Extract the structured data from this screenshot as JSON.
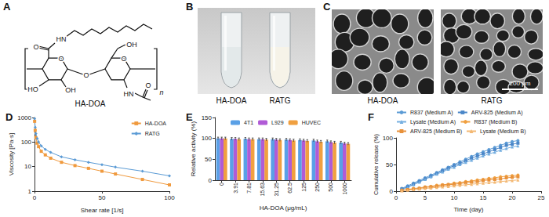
{
  "figure": {
    "A": {
      "label": "A",
      "atoms": [
        "O",
        "HN",
        "O",
        "HO",
        "OH",
        "O",
        "O",
        "OH",
        "HN",
        "O",
        "n"
      ],
      "caption": "HA-DOA"
    },
    "B": {
      "label": "B",
      "tubes": [
        "HA-DOA",
        "RATG"
      ]
    },
    "C": {
      "label": "C",
      "images": [
        "HA-DOA",
        "RATG"
      ],
      "scale_bar": "200 μm"
    }
  },
  "chart_data": [
    {
      "type": "line",
      "title": "D",
      "x_label": "Shear rate [1/s]",
      "y_label": "Viscosity [Pa·s]",
      "x": [
        0.1,
        0.5,
        1,
        2,
        3,
        5,
        8,
        12,
        20,
        30,
        40,
        50,
        60,
        80,
        100
      ],
      "series": [
        {
          "name": "HA-DOA",
          "color": "#f09a3e",
          "marker": "square",
          "values": [
            700,
            300,
            150,
            90,
            65,
            42,
            30,
            22,
            15,
            11,
            8.5,
            6.5,
            5,
            3,
            1.8
          ]
        },
        {
          "name": "RATG",
          "color": "#5b9bd5",
          "marker": "diamond",
          "values": [
            900,
            400,
            220,
            140,
            100,
            70,
            50,
            38,
            25,
            19,
            15,
            12,
            9.5,
            6.5,
            4.2
          ]
        }
      ],
      "xlim": [
        0,
        100
      ],
      "xticks": [
        0,
        50,
        100
      ],
      "ylim": [
        1,
        1000
      ],
      "yticks": [
        1,
        10,
        100,
        1000
      ],
      "log": "y",
      "grid": false,
      "legend": "upper right"
    },
    {
      "type": "bar",
      "title": "E",
      "x_label": "HA-DOA (μg/mL)",
      "y_label": "Relative activity (%)",
      "categories": [
        "0",
        "3.91",
        "7.81",
        "15.63",
        "31.25",
        "62.5",
        "125",
        "250",
        "500",
        "1000"
      ],
      "series": [
        {
          "name": "4T1",
          "color": "#5aa0e6",
          "values": [
            100,
            99,
            99,
            98,
            98,
            97,
            96,
            95,
            93,
            90
          ],
          "errors": [
            3,
            3,
            3,
            3,
            3,
            3,
            3,
            3,
            3,
            3
          ]
        },
        {
          "name": "L929",
          "color": "#b05bd6",
          "values": [
            100,
            99,
            98,
            98,
            97,
            96,
            95,
            93,
            91,
            88
          ],
          "errors": [
            3,
            3,
            3,
            3,
            3,
            3,
            3,
            3,
            3,
            3
          ]
        },
        {
          "name": "HUVEC",
          "color": "#f0a040",
          "values": [
            100,
            98,
            98,
            97,
            96,
            95,
            94,
            92,
            90,
            87
          ],
          "errors": [
            3,
            3,
            3,
            3,
            3,
            3,
            3,
            3,
            3,
            3
          ]
        }
      ],
      "ylim": [
        0,
        150
      ],
      "yticks": [
        0,
        50,
        100,
        150
      ],
      "grid": false,
      "legend": "upper center"
    },
    {
      "type": "line",
      "title": "F",
      "x_label": "Time (day)",
      "y_label": "Cumulative release (%)",
      "x": [
        1,
        2,
        3,
        4,
        5,
        6,
        7,
        8,
        9,
        10,
        11,
        12,
        13,
        14,
        15,
        16,
        17,
        18,
        19,
        20,
        21
      ],
      "series": [
        {
          "name": "R837 (Medium A)",
          "color": "#5b9bd5",
          "marker": "circle",
          "values": [
            5,
            10,
            15,
            20,
            25,
            30,
            35,
            40,
            45,
            50,
            55,
            60,
            65,
            70,
            74,
            78,
            82,
            86,
            90,
            93,
            95
          ]
        },
        {
          "name": "ARV-825 (Medium A)",
          "color": "#4a86c8",
          "marker": "square",
          "values": [
            4,
            8,
            13,
            18,
            23,
            28,
            33,
            38,
            43,
            48,
            52,
            57,
            62,
            66,
            70,
            74,
            78,
            82,
            86,
            88,
            90
          ]
        },
        {
          "name": "Lysate (Medium A)",
          "color": "#74aee0",
          "marker": "triangle",
          "values": [
            3,
            7,
            12,
            17,
            22,
            27,
            32,
            36,
            41,
            45,
            50,
            54,
            58,
            62,
            66,
            70,
            73,
            77,
            80,
            83,
            85
          ]
        },
        {
          "name": "R837 (Medium B)",
          "color": "#f0a040",
          "marker": "circle",
          "values": [
            2,
            3,
            5,
            6,
            8,
            9,
            11,
            12,
            13,
            15,
            16,
            18,
            19,
            21,
            22,
            24,
            25,
            27,
            28,
            29,
            30
          ]
        },
        {
          "name": "ARV-825 (Medium B)",
          "color": "#e8913a",
          "marker": "square",
          "values": [
            1,
            3,
            4,
            5,
            7,
            8,
            9,
            11,
            12,
            13,
            14,
            16,
            17,
            18,
            20,
            21,
            22,
            23,
            25,
            26,
            27
          ]
        },
        {
          "name": "Lysate (Medium B)",
          "color": "#f3b873",
          "marker": "triangle",
          "values": [
            1,
            2,
            3,
            4,
            5,
            6,
            7,
            8,
            9,
            10,
            11,
            12,
            13,
            14,
            15,
            16,
            17,
            18,
            19,
            20,
            21
          ]
        }
      ],
      "xlim": [
        0,
        25
      ],
      "xticks": [
        0,
        5,
        10,
        15,
        20,
        25
      ],
      "ylim": [
        0,
        100
      ],
      "yticks": [
        0,
        50,
        100
      ],
      "grid": false,
      "legend": "top"
    }
  ]
}
